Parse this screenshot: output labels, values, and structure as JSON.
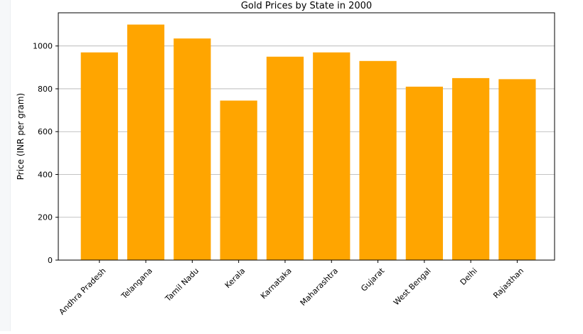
{
  "chart_data": {
    "type": "bar",
    "title": "Gold Prices by State in 2000",
    "xlabel": "",
    "ylabel": "Price (INR per gram)",
    "categories": [
      "Andhra Pradesh",
      "Telangana",
      "Tamil Nadu",
      "Kerala",
      "Karnataka",
      "Maharashtra",
      "Gujarat",
      "West Bengal",
      "Delhi",
      "Rajasthan"
    ],
    "values": [
      970,
      1100,
      1035,
      745,
      950,
      970,
      930,
      810,
      850,
      845
    ],
    "ylim": [
      0,
      1155
    ],
    "yticks": [
      0,
      200,
      400,
      600,
      800,
      1000
    ],
    "grid": "y",
    "bar_color": "#FFA500"
  }
}
